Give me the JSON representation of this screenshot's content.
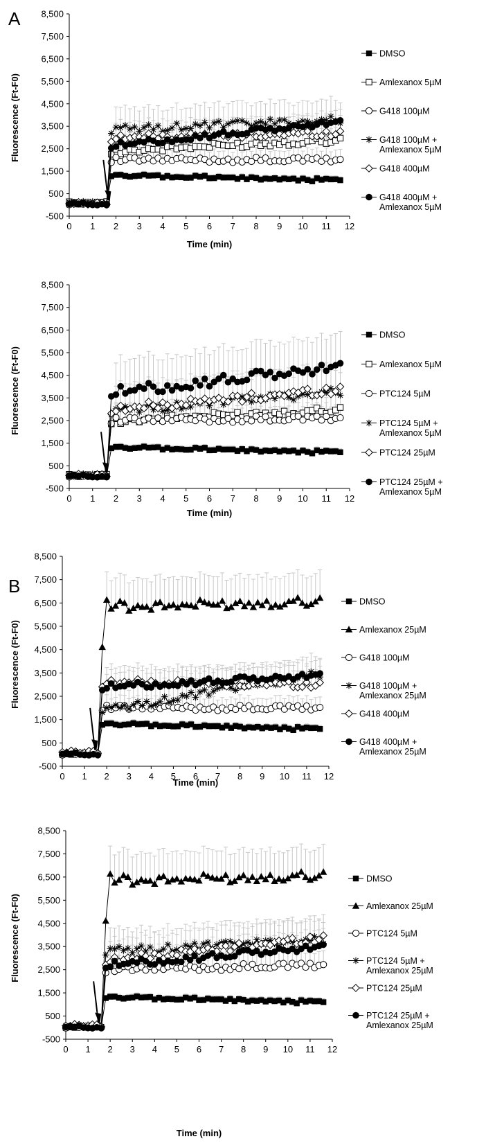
{
  "panels": [
    {
      "letter": "A"
    },
    {
      "letter": "B"
    }
  ],
  "chart_data": [
    {
      "type": "line",
      "xlabel": "Time (min)",
      "ylabel": "Fluorescence (Ft-F0)",
      "xlim": [
        0,
        12
      ],
      "ylim": [
        -500,
        8500
      ],
      "xticks": [
        "0",
        "1",
        "2",
        "3",
        "4",
        "5",
        "6",
        "7",
        "8",
        "9",
        "10",
        "11",
        "12"
      ],
      "yticks": [
        "-500",
        "500",
        "1,500",
        "2,500",
        "3,500",
        "4,500",
        "5,500",
        "6,500",
        "7,500",
        "8,500"
      ],
      "legend_position": "right",
      "arrow_at_x": 1.7,
      "series": [
        {
          "name": "DMSO",
          "marker": "square-filled",
          "pre": 80,
          "plateau": [
            1300,
            1100
          ],
          "err": 150
        },
        {
          "name": "Amlexanox 5µM",
          "marker": "square-open",
          "pre": 90,
          "plateau": [
            2400,
            2900
          ],
          "err": 600
        },
        {
          "name": "G418 100µM",
          "marker": "circle-open",
          "pre": 60,
          "plateau": [
            2000,
            2000
          ],
          "err": 450
        },
        {
          "name": "G418 100µM + Amlexanox 5µM",
          "marker": "star",
          "pre": 110,
          "plateau": [
            3350,
            3800
          ],
          "err": 900
        },
        {
          "name": "G418 400µM",
          "marker": "diamond-open",
          "pre": 70,
          "plateau": [
            3000,
            3200
          ],
          "err": 700
        },
        {
          "name": "G418 400µM + Amlexanox 5µM",
          "marker": "circle-filled",
          "pre": 50,
          "plateau": [
            2650,
            3700
          ],
          "err": 500
        }
      ]
    },
    {
      "type": "line",
      "xlabel": "Time (min)",
      "ylabel": "Fluorescence (Ft-F0)",
      "xlim": [
        0,
        12
      ],
      "ylim": [
        -500,
        8500
      ],
      "xticks": [
        "0",
        "1",
        "2",
        "3",
        "4",
        "5",
        "6",
        "7",
        "8",
        "9",
        "10",
        "11",
        "12"
      ],
      "yticks": [
        "-500",
        "500",
        "1,500",
        "2,500",
        "3,500",
        "4,500",
        "5,500",
        "6,500",
        "7,500",
        "8,500"
      ],
      "legend_position": "right",
      "arrow_at_x": 1.6,
      "series": [
        {
          "name": "DMSO",
          "marker": "square-filled",
          "pre": 80,
          "plateau": [
            1300,
            1100
          ],
          "err": 150
        },
        {
          "name": "Amlexanox 5µM",
          "marker": "square-open",
          "pre": 70,
          "plateau": [
            2500,
            3000
          ],
          "err": 700
        },
        {
          "name": "PTC124 5µM",
          "marker": "circle-open",
          "pre": 60,
          "plateau": [
            2500,
            2600
          ],
          "err": 600
        },
        {
          "name": "PTC124 5µM + Amlexanox 5µM",
          "marker": "star",
          "pre": 100,
          "plateau": [
            2900,
            3800
          ],
          "err": 1000
        },
        {
          "name": "PTC124 25µM",
          "marker": "diamond-open",
          "pre": 90,
          "plateau": [
            3000,
            3900
          ],
          "err": 1100
        },
        {
          "name": "PTC124 25µM + Amlexanox 5µM",
          "marker": "circle-filled",
          "pre": 50,
          "plateau": [
            3750,
            4900
          ],
          "err": 1400
        }
      ]
    },
    {
      "type": "line",
      "xlabel": "Time (min)",
      "ylabel": "Fluorescence (Ft-F0)",
      "xlim": [
        0,
        12
      ],
      "ylim": [
        -500,
        8500
      ],
      "xticks": [
        "0",
        "1",
        "2",
        "3",
        "4",
        "5",
        "6",
        "7",
        "8",
        "9",
        "10",
        "11",
        "12"
      ],
      "yticks": [
        "-500",
        "500",
        "1,500",
        "2,500",
        "3,500",
        "4,500",
        "5,500",
        "6,500",
        "7,500",
        "8,500"
      ],
      "legend_position": "right",
      "arrow_at_x": 1.5,
      "series": [
        {
          "name": "DMSO",
          "marker": "square-filled",
          "pre": 50,
          "plateau": [
            1300,
            1100
          ],
          "err": 150
        },
        {
          "name": "Amlexanox 25µM",
          "marker": "triangle-filled",
          "pre": 60,
          "plateau": [
            6300,
            6600
          ],
          "err": 1200,
          "peak": 6500
        },
        {
          "name": "G418 100µM",
          "marker": "circle-open",
          "pre": 40,
          "plateau": [
            2000,
            2000
          ],
          "err": 450
        },
        {
          "name": "G418 100µM + Amlexanox 25µM",
          "marker": "star",
          "pre": 80,
          "plateau": [
            1900,
            3500
          ],
          "err": 800
        },
        {
          "name": "G418 400µM",
          "marker": "diamond-open",
          "pre": 120,
          "plateau": [
            3100,
            3000
          ],
          "err": 700
        },
        {
          "name": "G418 400µM + Amlexanox 25µM",
          "marker": "circle-filled",
          "pre": 30,
          "plateau": [
            2900,
            3400
          ],
          "err": 600
        }
      ]
    },
    {
      "type": "line",
      "xlabel": "Time (min)",
      "ylabel": "Fluorescence (Ft-F0)",
      "xlim": [
        0,
        12
      ],
      "ylim": [
        -500,
        8500
      ],
      "xticks": [
        "0",
        "1",
        "2",
        "3",
        "4",
        "5",
        "6",
        "7",
        "8",
        "9",
        "10",
        "11",
        "12"
      ],
      "yticks": [
        "-500",
        "500",
        "1,500",
        "2,500",
        "3,500",
        "4,500",
        "5,500",
        "6,500",
        "7,500",
        "8,500"
      ],
      "legend_position": "right",
      "arrow_at_x": 1.5,
      "series": [
        {
          "name": "DMSO",
          "marker": "square-filled",
          "pre": 50,
          "plateau": [
            1300,
            1100
          ],
          "err": 150
        },
        {
          "name": "Amlexanox 25µM",
          "marker": "triangle-filled",
          "pre": 60,
          "plateau": [
            6300,
            6600
          ],
          "err": 1200,
          "peak": 6500
        },
        {
          "name": "PTC124 5µM",
          "marker": "circle-open",
          "pre": 40,
          "plateau": [
            2500,
            2700
          ],
          "err": 600
        },
        {
          "name": "PTC124 5µM + Amlexanox 25µM",
          "marker": "star",
          "pre": 80,
          "plateau": [
            3300,
            3800
          ],
          "err": 900
        },
        {
          "name": "PTC124 25µM",
          "marker": "diamond-open",
          "pre": 100,
          "plateau": [
            2900,
            3900
          ],
          "err": 900
        },
        {
          "name": "PTC124 25µM + Amlexanox 25µM",
          "marker": "circle-filled",
          "pre": 30,
          "plateau": [
            2700,
            3500
          ],
          "err": 700
        }
      ]
    }
  ]
}
